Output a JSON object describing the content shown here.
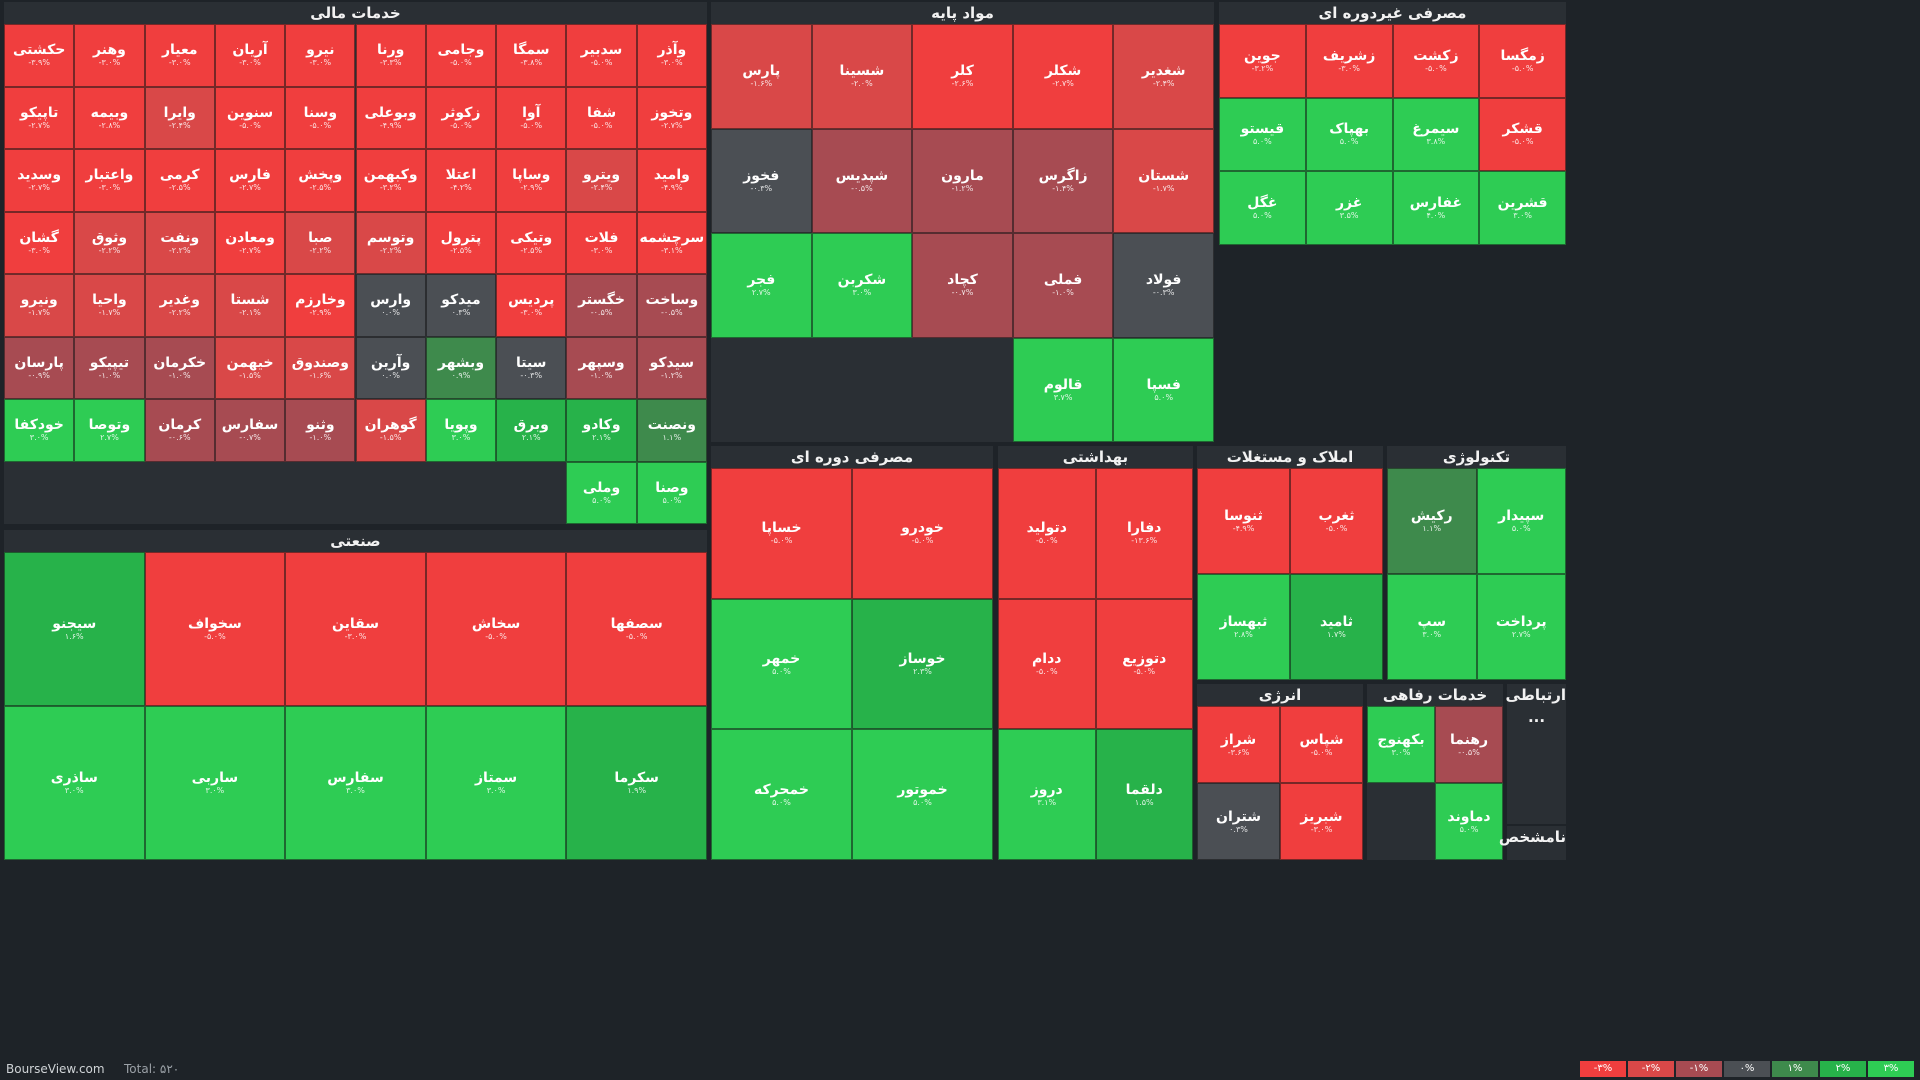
{
  "chart_data": {
    "type": "heatmap",
    "title": "",
    "source": "BourseView.com",
    "total_label": "Total: ۵۲۰",
    "legend": [
      "-۳%",
      "-۲%",
      "-۱%",
      "۰%",
      "۱%",
      "۲%",
      "۳%"
    ],
    "colors": {
      "neg3": "#f03e3e",
      "neg2": "#d94848",
      "neg1": "#a74b52",
      "zero": "#4b4f54",
      "pos1": "#3e8a4c",
      "pos2": "#27b24a",
      "pos3": "#2ecc54"
    },
    "sectors": [
      {
        "name": "خدمات مالی",
        "tiles": [
          {
            "n": "وآذر",
            "c": "-۳.۰%"
          },
          {
            "n": "سدبیر",
            "c": "-۵.۰%"
          },
          {
            "n": "سمگا",
            "c": "-۳.۸%"
          },
          {
            "n": "وجامی",
            "c": "-۵.۰%"
          },
          {
            "n": "ورنا",
            "c": "-۳.۳%"
          },
          {
            "n": "نیرو",
            "c": "-۳.۰%"
          },
          {
            "n": "آریان",
            "c": "-۳.۰%"
          },
          {
            "n": "معیار",
            "c": "-۳.۰%"
          },
          {
            "n": "وهنر",
            "c": "-۳.۰%"
          },
          {
            "n": "حکشتی",
            "c": "-۳.۹%"
          },
          {
            "n": "وتخوز",
            "c": "-۲.۷%"
          },
          {
            "n": "شفا",
            "c": "-۵.۰%"
          },
          {
            "n": "آوا",
            "c": "-۵.۰%"
          },
          {
            "n": "زکوثر",
            "c": "-۵.۰%"
          },
          {
            "n": "وبوعلی",
            "c": "-۴.۹%"
          },
          {
            "n": "وسنا",
            "c": "-۵.۰%"
          },
          {
            "n": "سنوین",
            "c": "-۵.۰%"
          },
          {
            "n": "وایرا",
            "c": "-۲.۴%"
          },
          {
            "n": "وبیمه",
            "c": "-۲.۸%"
          },
          {
            "n": "تاپیکو",
            "c": "-۲.۷%"
          },
          {
            "n": "وامید",
            "c": "-۴.۹%"
          },
          {
            "n": "ویترو",
            "c": "-۲.۴%"
          },
          {
            "n": "وساپا",
            "c": "-۲.۹%"
          },
          {
            "n": "اعتلا",
            "c": "-۴.۲%"
          },
          {
            "n": "وکبهمن",
            "c": "-۳.۲%"
          },
          {
            "n": "وپخش",
            "c": "-۲.۵%"
          },
          {
            "n": "فارس",
            "c": "-۲.۷%"
          },
          {
            "n": "کرمی",
            "c": "-۲.۵%"
          },
          {
            "n": "واعتبار",
            "c": "-۳.۰%"
          },
          {
            "n": "وسدید",
            "c": "-۲.۷%"
          },
          {
            "n": "سرچشمه",
            "c": "-۳.۱%"
          },
          {
            "n": "فلات",
            "c": "-۳.۰%"
          },
          {
            "n": "وتیکی",
            "c": "-۲.۵%"
          },
          {
            "n": "پترول",
            "c": "-۲.۵%"
          },
          {
            "n": "وتوسم",
            "c": "-۲.۲%"
          },
          {
            "n": "صبا",
            "c": "-۲.۲%"
          },
          {
            "n": "ومعادن",
            "c": "-۲.۷%"
          },
          {
            "n": "ونفت",
            "c": "-۲.۲%"
          },
          {
            "n": "وثوق",
            "c": "-۲.۲%"
          },
          {
            "n": "گشان",
            "c": "-۳.۰%"
          },
          {
            "n": "وساخت",
            "c": "-۰.۵%"
          },
          {
            "n": "خگستر",
            "c": "-۰.۵%"
          },
          {
            "n": "پردیس",
            "c": "-۳.۰%"
          },
          {
            "n": "میدکو",
            "c": "۰.۳%"
          },
          {
            "n": "وارس",
            "c": "۰.۰%"
          },
          {
            "n": "وخارزم",
            "c": "-۲.۹%"
          },
          {
            "n": "شستا",
            "c": "-۲.۱%"
          },
          {
            "n": "وغدیر",
            "c": "-۲.۲%"
          },
          {
            "n": "واحیا",
            "c": "-۱.۷%"
          },
          {
            "n": "ونیرو",
            "c": "-۱.۷%"
          },
          {
            "n": "سیدکو",
            "c": "-۱.۲%"
          },
          {
            "n": "وسپهر",
            "c": "-۱.۰%"
          },
          {
            "n": "سیتا",
            "c": "-۰.۳%"
          },
          {
            "n": "وبشهر",
            "c": "۰.۹%"
          },
          {
            "n": "وآرین",
            "c": "۰.۰%"
          },
          {
            "n": "وصندوق",
            "c": "-۱.۶%"
          },
          {
            "n": "خیهمن",
            "c": "-۱.۵%"
          },
          {
            "n": "خکرمان",
            "c": "-۱.۰%"
          },
          {
            "n": "تیپیکو",
            "c": "-۱.۰%"
          },
          {
            "n": "پارسان",
            "c": "-۰.۹%"
          },
          {
            "n": "ونصنت",
            "c": "۱.۱%"
          },
          {
            "n": "وکادو",
            "c": "۲.۱%"
          },
          {
            "n": "وبرق",
            "c": "۲.۱%"
          },
          {
            "n": "وپویا",
            "c": "۳.۰%"
          },
          {
            "n": "گوهران",
            "c": "-۱.۵%"
          },
          {
            "n": "وثنو",
            "c": "-۱.۰%"
          },
          {
            "n": "سفارس",
            "c": "-۰.۷%"
          },
          {
            "n": "کرمان",
            "c": "-۰.۶%"
          },
          {
            "n": "وتوصا",
            "c": "۲.۷%"
          },
          {
            "n": "خودکفا",
            "c": "۳.۰%"
          },
          {
            "n": "وصنا",
            "c": "۵.۰%"
          },
          {
            "n": "وملی",
            "c": "۵.۰%"
          }
        ]
      },
      {
        "name": "مواد پایه",
        "tiles": [
          {
            "n": "شغدیر",
            "c": "-۲.۴%"
          },
          {
            "n": "شکلر",
            "c": "-۲.۷%"
          },
          {
            "n": "کلر",
            "c": "-۲.۶%"
          },
          {
            "n": "شسینا",
            "c": "-۲.۰%"
          },
          {
            "n": "پارس",
            "c": "-۱.۶%"
          },
          {
            "n": "شستان",
            "c": "-۱.۷%"
          },
          {
            "n": "زاگرس",
            "c": "-۱.۴%"
          },
          {
            "n": "مارون",
            "c": "-۱.۲%"
          },
          {
            "n": "شپدیس",
            "c": "-۰.۵%"
          },
          {
            "n": "فخوز",
            "c": "-۰.۳%"
          },
          {
            "n": "فولاد",
            "c": "-۰.۳%"
          },
          {
            "n": "فملی",
            "c": "-۱.۰%"
          },
          {
            "n": "کچاد",
            "c": "-۰.۷%"
          },
          {
            "n": "شکربن",
            "c": "۳.۰%"
          },
          {
            "n": "فجر",
            "c": "۲.۷%"
          },
          {
            "n": "فسپا",
            "c": "۵.۰%"
          },
          {
            "n": "قالوم",
            "c": "۳.۷%"
          }
        ]
      },
      {
        "name": "مصرفی غیردوره ای",
        "tiles": [
          {
            "n": "زمگسا",
            "c": "-۵.۰%"
          },
          {
            "n": "زکشت",
            "c": "-۵.۰%"
          },
          {
            "n": "زشریف",
            "c": "-۳.۰%"
          },
          {
            "n": "جوین",
            "c": "-۳.۲%"
          },
          {
            "n": "قشکر",
            "c": "-۵.۰%"
          },
          {
            "n": "سیمرغ",
            "c": "۳.۸%"
          },
          {
            "n": "بهپاک",
            "c": "۵.۰%"
          },
          {
            "n": "قیستو",
            "c": "۵.۰%"
          },
          {
            "n": "قشرین",
            "c": "۳.۰%"
          },
          {
            "n": "غفارس",
            "c": "۴.۰%"
          },
          {
            "n": "غزر",
            "c": "۳.۵%"
          },
          {
            "n": "غگل",
            "c": "۵.۰%"
          }
        ]
      },
      {
        "name": "صنعتی",
        "tiles": [
          {
            "n": "سصفها",
            "c": "-۵.۰%"
          },
          {
            "n": "سخاش",
            "c": "-۵.۰%"
          },
          {
            "n": "سقاین",
            "c": "-۳.۰%"
          },
          {
            "n": "سخواف",
            "c": "-۵.۰%"
          },
          {
            "n": "سیجنو",
            "c": "۱.۶%"
          },
          {
            "n": "سکرما",
            "c": "۱.۹%"
          },
          {
            "n": "سمتاز",
            "c": "۳.۰%"
          },
          {
            "n": "سفارس",
            "c": "۳.۰%"
          },
          {
            "n": "ساربی",
            "c": "۳.۰%"
          },
          {
            "n": "ساذری",
            "c": "۳.۰%"
          }
        ]
      },
      {
        "name": "مصرفی دوره ای",
        "tiles": [
          {
            "n": "خودرو",
            "c": "-۵.۰%"
          },
          {
            "n": "خساپا",
            "c": "-۵.۰%"
          },
          {
            "n": "خوساز",
            "c": "۲.۳%"
          },
          {
            "n": "خمهر",
            "c": "۵.۰%"
          },
          {
            "n": "خموتور",
            "c": "۵.۰%"
          },
          {
            "n": "خمحرکه",
            "c": "۵.۰%"
          }
        ]
      },
      {
        "name": "بهداشتی",
        "tiles": [
          {
            "n": "دفارا",
            "c": "-۱۳.۶%"
          },
          {
            "n": "دتولید",
            "c": "-۵.۰%"
          },
          {
            "n": "دتوزیع",
            "c": "-۵.۰%"
          },
          {
            "n": "ددام",
            "c": "-۵.۰%"
          },
          {
            "n": "دلقما",
            "c": "۱.۵%"
          },
          {
            "n": "دروز",
            "c": "۳.۱%"
          }
        ]
      },
      {
        "name": "املاک و مستغلات",
        "tiles": [
          {
            "n": "ثغرب",
            "c": "-۵.۰%"
          },
          {
            "n": "ثنوسا",
            "c": "-۴.۹%"
          },
          {
            "n": "ثامید",
            "c": "۱.۷%"
          },
          {
            "n": "ثبهساز",
            "c": "۲.۸%"
          }
        ]
      },
      {
        "name": "تکنولوژی",
        "tiles": [
          {
            "n": "سپیدار",
            "c": "۵.۰%"
          },
          {
            "n": "رکیش",
            "c": "۱.۱%"
          },
          {
            "n": "پرداخت",
            "c": "۲.۷%"
          },
          {
            "n": "سپ",
            "c": "۳.۰%"
          }
        ]
      },
      {
        "name": "انرژی",
        "tiles": [
          {
            "n": "شپاس",
            "c": "-۵.۰%"
          },
          {
            "n": "شراز",
            "c": "-۳.۶%"
          },
          {
            "n": "شبریز",
            "c": "-۳.۰%"
          },
          {
            "n": "شتران",
            "c": "۰.۳%"
          }
        ]
      },
      {
        "name": "خدمات رفاهی",
        "tiles": [
          {
            "n": "رهنما",
            "c": "-۰.۵%"
          },
          {
            "n": "بکهنوج",
            "c": "۳.۰%"
          },
          {
            "n": "دماوند",
            "c": "۵.۰%"
          }
        ]
      },
      {
        "name": "ارتباطی ...",
        "tiles": []
      },
      {
        "name": "نامشخص",
        "tiles": []
      }
    ]
  }
}
